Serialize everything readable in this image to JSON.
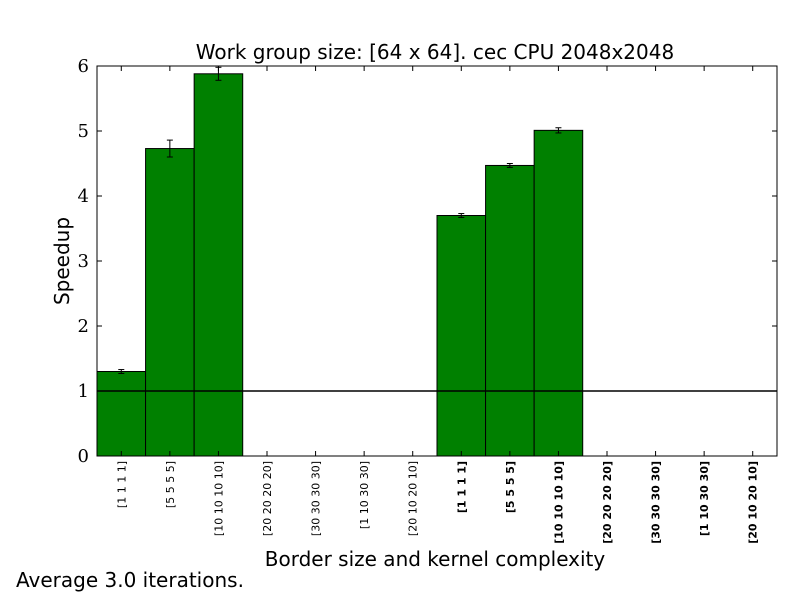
{
  "chart_data": {
    "type": "bar",
    "title": "Work group size: [64 x 64]. cec CPU 2048x2048",
    "xlabel": "Border size and kernel complexity",
    "ylabel": "Speedup",
    "ylim": [
      0,
      6
    ],
    "yticks": [
      "0",
      "1",
      "2",
      "3",
      "4",
      "5",
      "6"
    ],
    "reference_line": 1,
    "grid": false,
    "categories": [
      "[1 1 1 1]",
      "[5 5 5 5]",
      "[10 10 10 10]",
      "[20 20 20 20]",
      "[30 30 30 30]",
      "[1 10 30 30]",
      "[20 10 20 10]",
      "[1 1 1 1]",
      "[5 5 5 5]",
      "[10 10 10 10]",
      "[20 20 20 20]",
      "[30 30 30 30]",
      "[1 10 30 30]",
      "[20 10 20 10]"
    ],
    "bold_labels": [
      false,
      false,
      false,
      false,
      false,
      false,
      false,
      true,
      true,
      true,
      true,
      true,
      true,
      true
    ],
    "values": [
      1.3,
      4.73,
      5.88,
      null,
      null,
      null,
      null,
      3.7,
      4.47,
      5.01,
      null,
      null,
      null,
      null
    ],
    "errors": [
      0.03,
      0.13,
      0.1,
      null,
      null,
      null,
      null,
      0.03,
      0.03,
      0.04,
      null,
      null,
      null,
      null
    ],
    "bar_color": "#008000"
  },
  "footnote": "Average 3.0 iterations."
}
